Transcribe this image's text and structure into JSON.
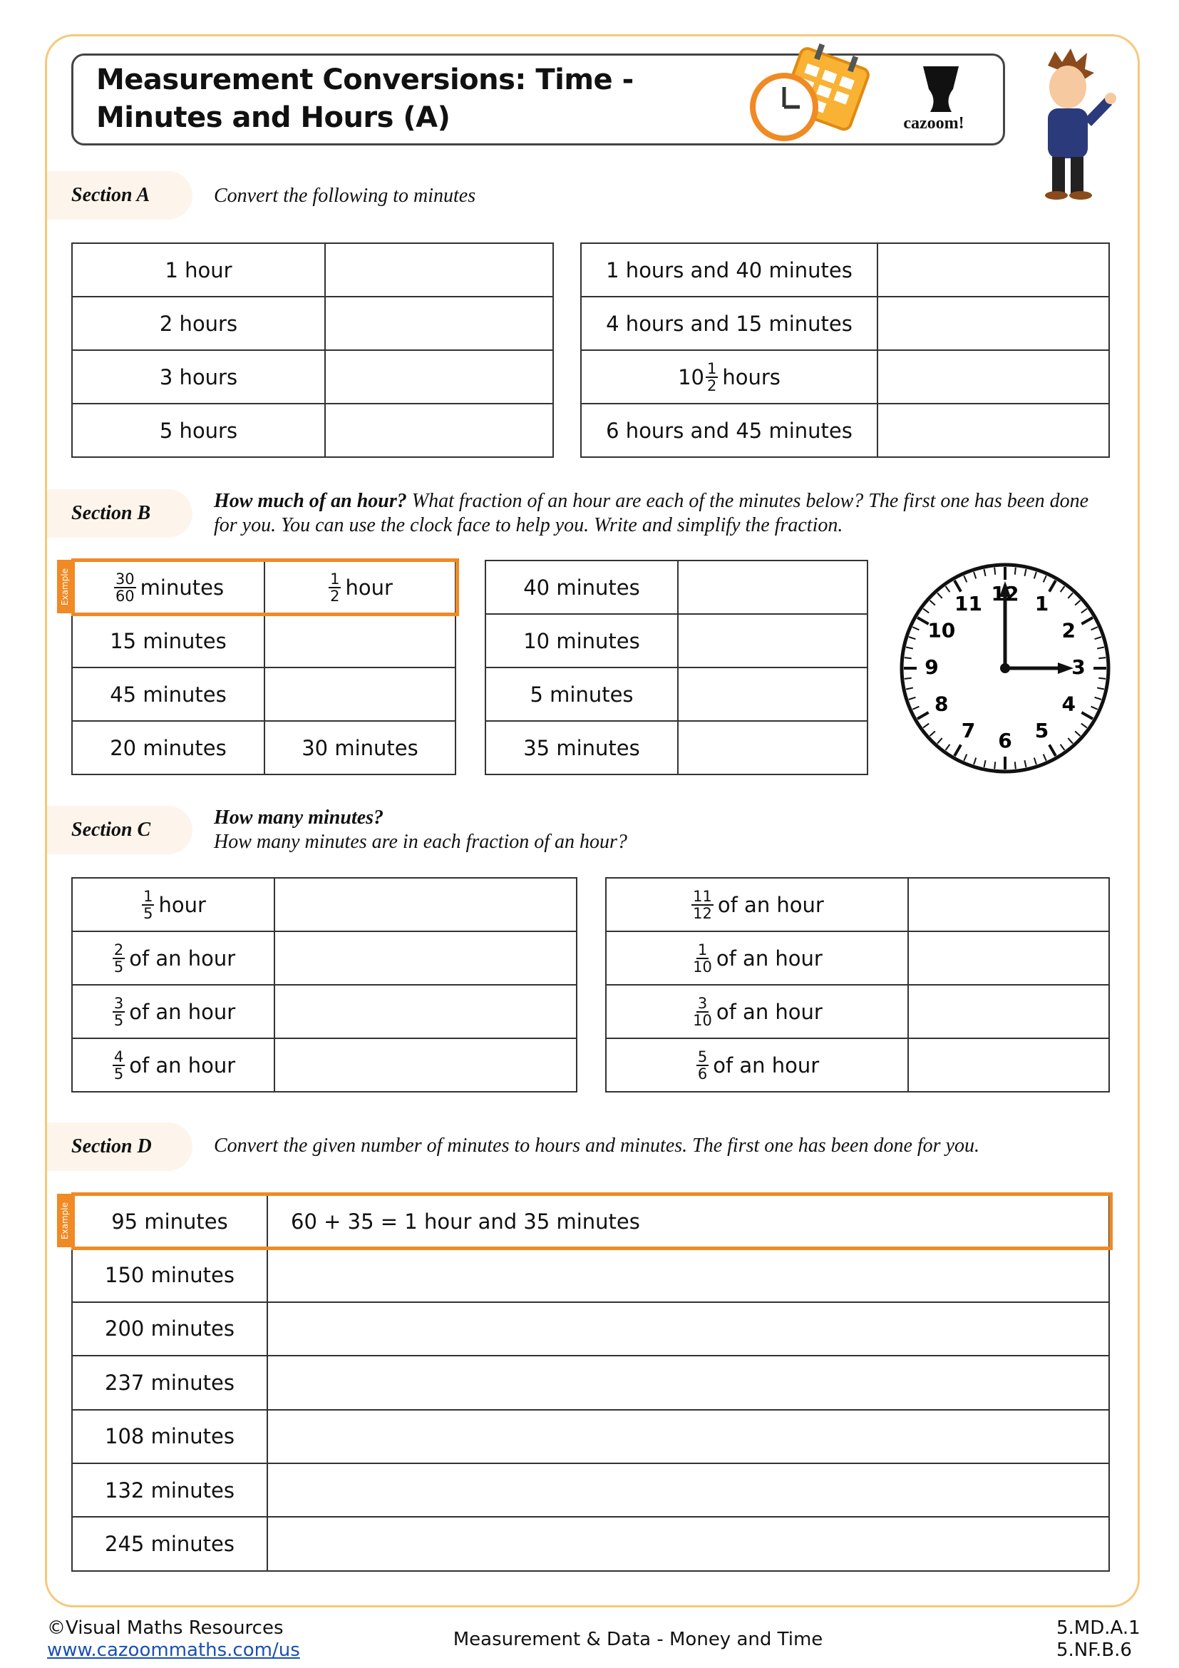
{
  "header": {
    "title_line1": "Measurement Conversions: Time -",
    "title_line2": "Minutes and Hours (A)",
    "logo": "cazoom!"
  },
  "section_a": {
    "label": "Section A",
    "instruction": "Convert the following to minutes",
    "left": [
      {
        "prompt": "1 hour"
      },
      {
        "prompt": "2 hours"
      },
      {
        "prompt": "3 hours"
      },
      {
        "prompt": "5 hours"
      }
    ],
    "right": [
      {
        "prompt": "1 hours and 40 minutes"
      },
      {
        "prompt": "4 hours and 15 minutes"
      },
      {
        "prompt": {
          "whole": "10",
          "num": "1",
          "den": "2",
          "text": "hours"
        }
      },
      {
        "prompt": "6 hours and 45 minutes"
      }
    ]
  },
  "section_b": {
    "label": "Section B",
    "instruction_lead": "How much of an hour?",
    "instruction": "What fraction of an hour are each of the minutes below? The first one has been done for you. You can use the clock face to help you. Write and simplify the fraction.",
    "example_tag": "Example",
    "left": [
      {
        "prompt": {
          "num": "30",
          "den": "60",
          "text": "minutes"
        },
        "answer": {
          "num": "1",
          "den": "2",
          "text": "hour"
        }
      },
      {
        "prompt": "15 minutes"
      },
      {
        "prompt": "45 minutes"
      },
      {
        "prompt": "20 minutes",
        "answer": "30 minutes"
      }
    ],
    "right": [
      {
        "prompt": "40 minutes"
      },
      {
        "prompt": "10 minutes"
      },
      {
        "prompt": "5 minutes"
      },
      {
        "prompt": "35 minutes"
      }
    ]
  },
  "clock": {
    "numbers": [
      "12",
      "1",
      "2",
      "3",
      "4",
      "5",
      "6",
      "7",
      "8",
      "9",
      "10",
      "11"
    ]
  },
  "section_c": {
    "label": "Section C",
    "instruction_lead": "How many minutes?",
    "instruction": "How many minutes are in each fraction of an hour?",
    "left": [
      {
        "prompt": {
          "num": "1",
          "den": "5",
          "text": "hour"
        }
      },
      {
        "prompt": {
          "num": "2",
          "den": "5",
          "text": "of an hour"
        }
      },
      {
        "prompt": {
          "num": "3",
          "den": "5",
          "text": "of an hour"
        }
      },
      {
        "prompt": {
          "num": "4",
          "den": "5",
          "text": "of an hour"
        }
      }
    ],
    "right": [
      {
        "prompt": {
          "num": "11",
          "den": "12",
          "text": "of an hour"
        }
      },
      {
        "prompt": {
          "num": "1",
          "den": "10",
          "text": "of an hour"
        }
      },
      {
        "prompt": {
          "num": "3",
          "den": "10",
          "text": "of an hour"
        }
      },
      {
        "prompt": {
          "num": "5",
          "den": "6",
          "text": "of an hour"
        }
      }
    ]
  },
  "section_d": {
    "label": "Section D",
    "instruction": "Convert the given number of minutes to hours and minutes.  The first one has been done for you.",
    "example_tag": "Example",
    "rows": [
      {
        "prompt": "95 minutes",
        "answer": "60 + 35 = 1 hour and 35 minutes"
      },
      {
        "prompt": "150 minutes"
      },
      {
        "prompt": "200 minutes"
      },
      {
        "prompt": "237 minutes"
      },
      {
        "prompt": "108 minutes"
      },
      {
        "prompt": "132 minutes"
      },
      {
        "prompt": "245 minutes"
      }
    ]
  },
  "footer": {
    "copyright": "©Visual Maths Resources",
    "url": "www.cazoommaths.com/us",
    "topic": "Measurement & Data - Money and Time",
    "standards": [
      "5.MD.A.1",
      "5.NF.B.6"
    ]
  }
}
